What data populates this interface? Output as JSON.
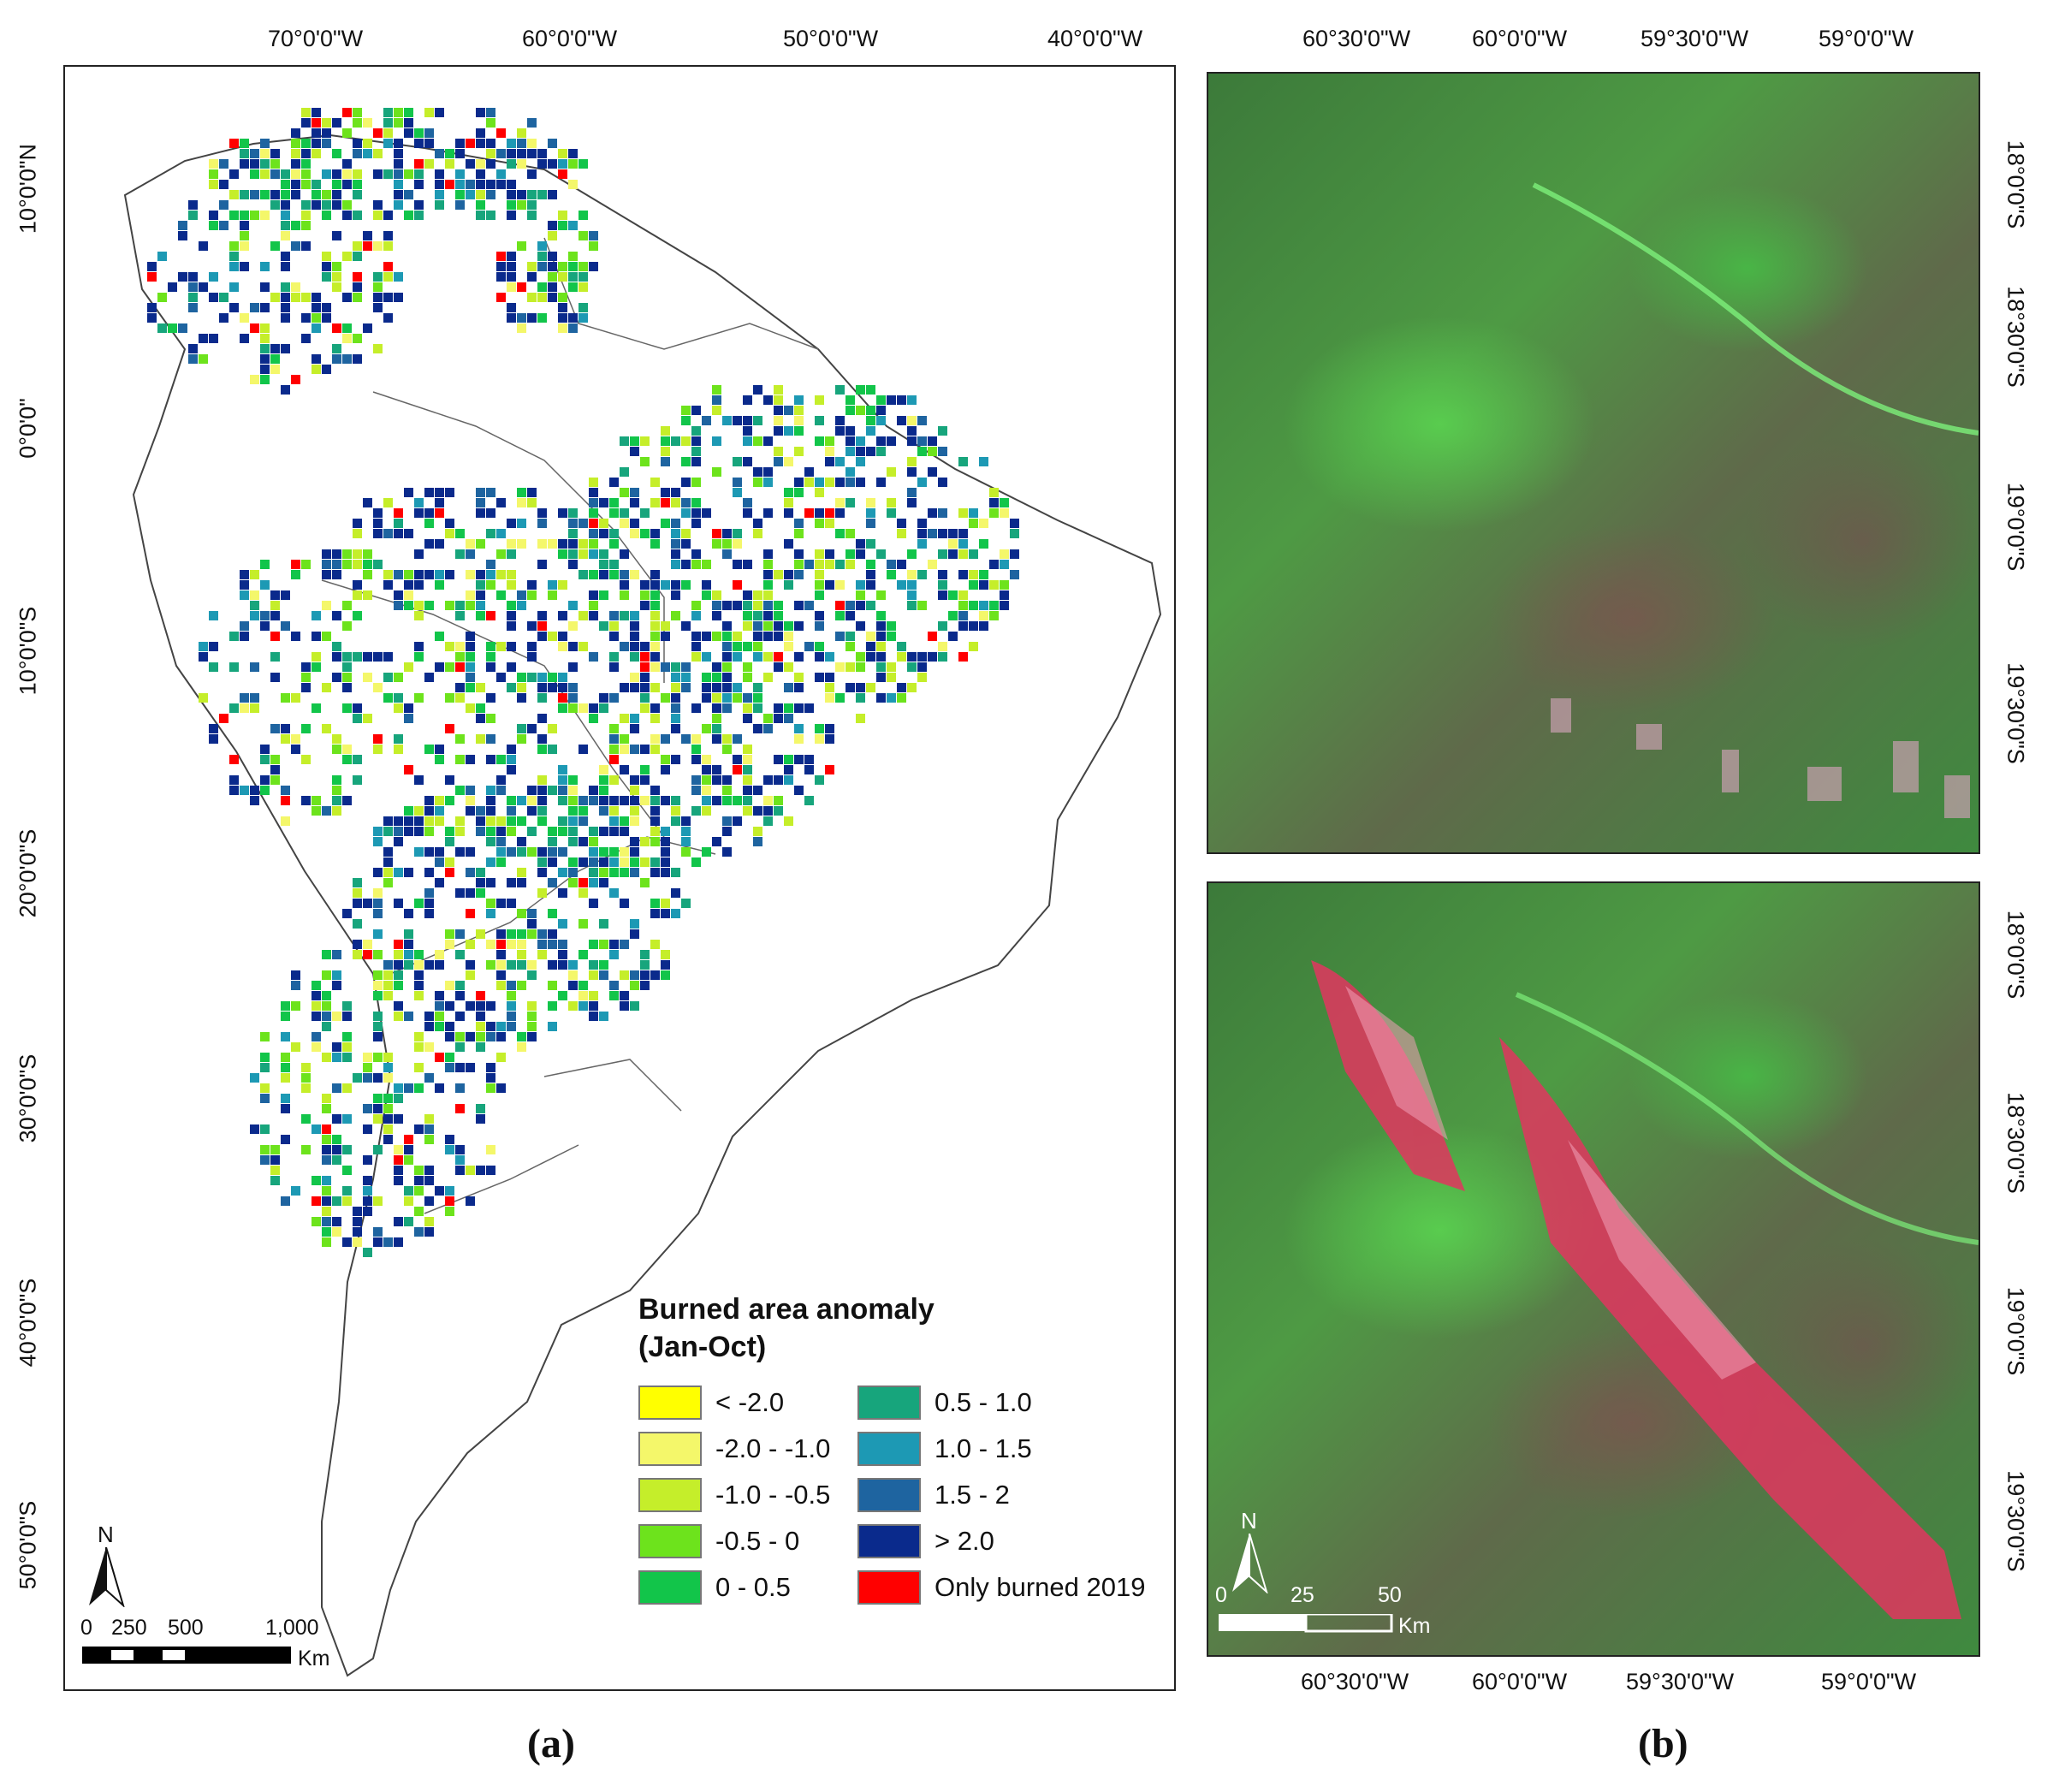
{
  "panel_a": {
    "label": "(a)",
    "top_ticks": [
      "70°0'0\"W",
      "60°0'0\"W",
      "50°0'0\"W",
      "40°0'0\"W"
    ],
    "left_ticks": [
      "10°0'0\"N",
      "0°0'0\"",
      "10°0'0\"S",
      "20°0'0\"S",
      "30°0'0\"S",
      "40°0'0\"S",
      "50°0'0\"S"
    ],
    "legend": {
      "title_line1": "Burned area anomaly",
      "title_line2": "(Jan-Oct)",
      "items": [
        {
          "label": "< -2.0",
          "color": "#ffff00"
        },
        {
          "label": "-2.0 - -1.0",
          "color": "#f4f76a"
        },
        {
          "label": "-1.0 - -0.5",
          "color": "#c5ee2a"
        },
        {
          "label": "-0.5 - 0",
          "color": "#6de31c"
        },
        {
          "label": "0 - 0.5",
          "color": "#12c54a"
        },
        {
          "label": "0.5 - 1.0",
          "color": "#17a57c"
        },
        {
          "label": "1.0 - 1.5",
          "color": "#1d99b4"
        },
        {
          "label": "1.5 - 2",
          "color": "#1e64a0"
        },
        {
          "label": "> 2.0",
          "color": "#0a2a8c"
        },
        {
          "label": "Only burned 2019",
          "color": "#ff0000"
        }
      ]
    },
    "scale": {
      "labels": [
        "0",
        "250",
        "500",
        "1,000"
      ],
      "unit": "Km"
    },
    "north": "N"
  },
  "panel_b": {
    "label": "(b)",
    "top_ticks": [
      "60°30'0\"W",
      "60°0'0\"W",
      "59°30'0\"W",
      "59°0'0\"W"
    ],
    "bottom_ticks": [
      "60°30'0\"W",
      "60°0'0\"W",
      "59°30'0\"W",
      "59°0'0\"W"
    ],
    "right_ticks_top": [
      "18°0'0\"S",
      "18°30'0\"S",
      "19°0'0\"S",
      "19°30'0\"S"
    ],
    "right_ticks_bottom": [
      "18°0'0\"S",
      "18°30'0\"S",
      "19°0'0\"S",
      "19°30'0\"S"
    ],
    "scale": {
      "labels": [
        "0",
        "25",
        "50"
      ],
      "unit": "Km"
    },
    "north": "N"
  }
}
